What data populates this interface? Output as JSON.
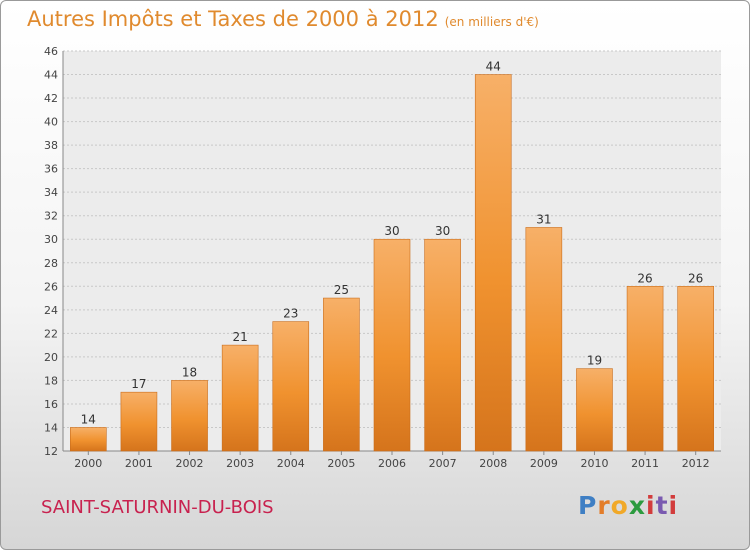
{
  "chart_data": {
    "type": "bar",
    "title": "Autres Impôts et Taxes de 2000 à 2012",
    "unit": "(en milliers d'€)",
    "categories": [
      "2000",
      "2001",
      "2002",
      "2003",
      "2004",
      "2005",
      "2006",
      "2007",
      "2008",
      "2009",
      "2010",
      "2011",
      "2012"
    ],
    "values": [
      14,
      17,
      18,
      21,
      23,
      25,
      30,
      30,
      44,
      31,
      19,
      26,
      26
    ],
    "ylim": [
      12,
      46
    ],
    "yticks": [
      12,
      14,
      16,
      18,
      20,
      22,
      24,
      26,
      28,
      30,
      32,
      34,
      36,
      38,
      40,
      42,
      44,
      46
    ],
    "grid": true,
    "bar_color": "#f0922f",
    "bar_color_light": "#f7b068",
    "bar_color_dark": "#d5741c"
  },
  "footer": {
    "commune": "SAINT-SATURNIN-DU-BOIS",
    "logo": {
      "p": "P",
      "r": "r",
      "o": "o",
      "x": "x",
      "i": "i",
      "t": "t",
      "i2": "i"
    }
  }
}
